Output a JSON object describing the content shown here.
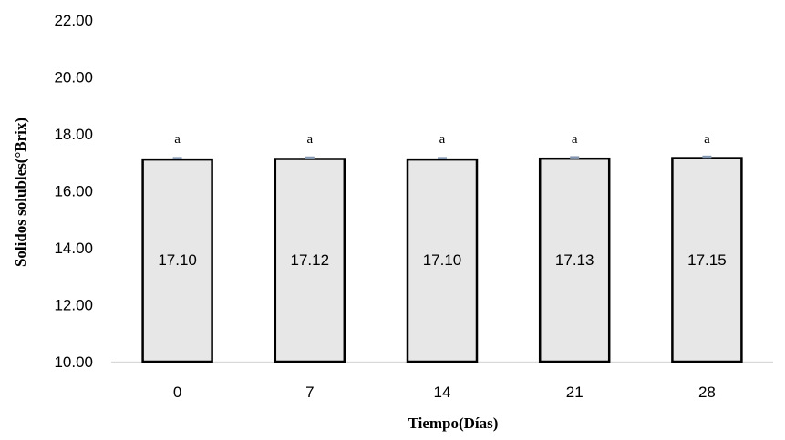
{
  "chart_data": {
    "type": "bar",
    "categories": [
      "0",
      "7",
      "14",
      "21",
      "28"
    ],
    "values": [
      17.1,
      17.12,
      17.1,
      17.13,
      17.15
    ],
    "data_labels": [
      "17.10",
      "17.12",
      "17.10",
      "17.13",
      "17.15"
    ],
    "significance_letters": [
      "a",
      "a",
      "a",
      "a",
      "a"
    ],
    "error_bars": true,
    "xlabel": "Tiempo(Días)",
    "ylabel": "Solidos solubles(°Brix)",
    "ylim": [
      10,
      22
    ],
    "yticks": [
      "10.00",
      "12.00",
      "14.00",
      "16.00",
      "18.00",
      "20.00",
      "22.00"
    ],
    "grid": false,
    "legend": "none",
    "colors": {
      "bar_fill": "#e7e7e7",
      "bar_stroke": "#000000",
      "error_bar": "#8497b0",
      "axis_line": "#d9d9d9"
    }
  }
}
